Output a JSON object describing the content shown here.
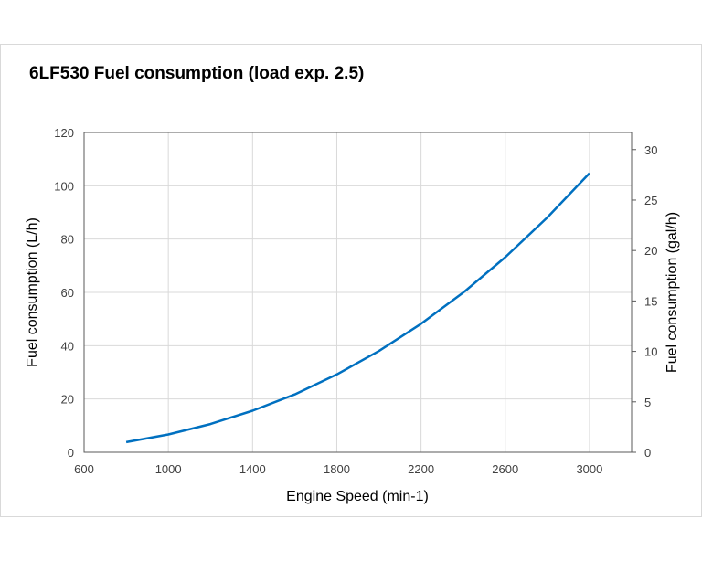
{
  "chart_data": {
    "type": "line",
    "title": "6LF530 Fuel consumption (load exp. 2.5)",
    "xlabel": "Engine Speed (min-1)",
    "ylabel": "Fuel consumption (L/h)",
    "y2label": "Fuel consumption (gal/h)",
    "xlim": [
      600,
      3200
    ],
    "ylim": [
      0,
      120
    ],
    "y2lim": [
      0,
      31.7
    ],
    "xticks": [
      600,
      1000,
      1400,
      1800,
      2200,
      2600,
      3000
    ],
    "yticks": [
      0,
      20,
      40,
      60,
      80,
      100,
      120
    ],
    "y2ticks": [
      0,
      5,
      10,
      15,
      20,
      25,
      30
    ],
    "grid": true,
    "series": [
      {
        "color": "#0070c0",
        "x": [
          800,
          1000,
          1200,
          1400,
          1600,
          1800,
          2000,
          2200,
          2400,
          2600,
          2800,
          3000
        ],
        "y": [
          3.8,
          6.7,
          10.6,
          15.6,
          21.7,
          29.2,
          38.0,
          48.2,
          59.9,
          73.2,
          88.1,
          104.7
        ]
      }
    ]
  }
}
